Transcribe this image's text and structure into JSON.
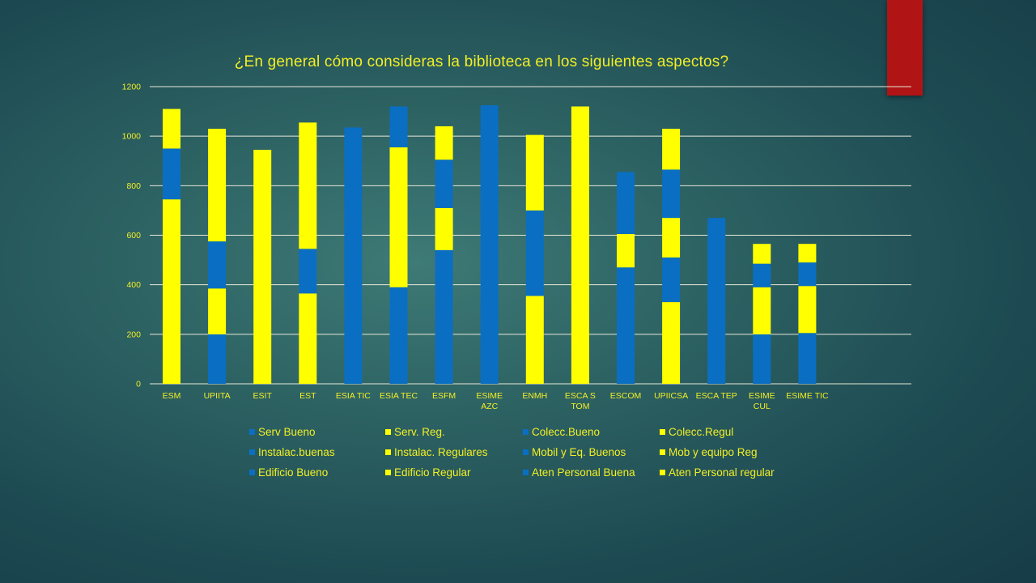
{
  "colors": {
    "blue": "#0a6fc2",
    "yellow": "#ffff00",
    "gridline": "#e8e8d8",
    "text": "#f2ef24",
    "accent": "#b11414"
  },
  "chart_data": {
    "type": "bar",
    "stacked": true,
    "title": "¿En general cómo consideras la biblioteca en los siguientes aspectos?",
    "xlabel": "",
    "ylabel": "",
    "ylim": [
      0,
      1200
    ],
    "yticks": [
      0,
      200,
      400,
      600,
      800,
      1000,
      1200
    ],
    "grid": true,
    "legend_position": "bottom",
    "categories": [
      "ESM",
      "UPIITA",
      "ESIT",
      "EST",
      "ESIA TIC",
      "ESIA TEC",
      "ESFM",
      "ESIME AZC",
      "ENMH",
      "ESCA S TOM",
      "ESCOM",
      "UPIICSA",
      "ESCA TEP",
      "ESIME CUL",
      "ESIME TIC"
    ],
    "category_lines": [
      [
        "ESM"
      ],
      [
        "UPIITA"
      ],
      [
        "ESIT"
      ],
      [
        "EST"
      ],
      [
        "ESIA TIC"
      ],
      [
        "ESIA TEC"
      ],
      [
        "ESFM"
      ],
      [
        "ESIME",
        "AZC"
      ],
      [
        "ENMH"
      ],
      [
        "ESCA S",
        "TOM"
      ],
      [
        "ESCOM"
      ],
      [
        "UPIICSA"
      ],
      [
        "ESCA TEP"
      ],
      [
        "ESIME",
        "CUL"
      ],
      [
        "ESIME TIC"
      ]
    ],
    "series": [
      {
        "name": "Serv Bueno",
        "color": "blue",
        "values": [
          0,
          0,
          0,
          0,
          0,
          0,
          0,
          0,
          0,
          0,
          0,
          0,
          0,
          0,
          0
        ]
      },
      {
        "name": "Serv. Reg.",
        "color": "yellow",
        "values": [
          745,
          0,
          0,
          0,
          0,
          0,
          0,
          0,
          0,
          0,
          0,
          0,
          0,
          0,
          0
        ]
      },
      {
        "name": "Colecc.Bueno",
        "color": "blue",
        "values": [
          205,
          200,
          0,
          0,
          0,
          0,
          0,
          0,
          0,
          0,
          0,
          0,
          0,
          0,
          0
        ]
      },
      {
        "name": "Colecc.Regul",
        "color": "yellow",
        "values": [
          160,
          185,
          0,
          0,
          0,
          0,
          0,
          0,
          0,
          0,
          0,
          0,
          0,
          0,
          0
        ]
      },
      {
        "name": "Instalac.buenas",
        "color": "blue",
        "values": [
          0,
          190,
          0,
          0,
          0,
          0,
          0,
          0,
          0,
          0,
          0,
          0,
          0,
          0,
          0
        ]
      },
      {
        "name": "Instalac. Regulares",
        "color": "yellow",
        "values": [
          0,
          455,
          945,
          365,
          0,
          0,
          0,
          0,
          0,
          0,
          0,
          0,
          0,
          0,
          0
        ]
      },
      {
        "name": "Mobil y Eq. Buenos",
        "color": "blue",
        "values": [
          0,
          0,
          0,
          180,
          1035,
          390,
          0,
          0,
          0,
          0,
          0,
          0,
          0,
          0,
          0
        ]
      },
      {
        "name": "Mob y equipo Reg",
        "color": "yellow",
        "values": [
          0,
          0,
          0,
          510,
          0,
          565,
          0,
          0,
          0,
          0,
          0,
          0,
          0,
          0,
          0
        ]
      },
      {
        "name": "Edificio Bueno",
        "color": "blue",
        "values": [
          0,
          0,
          0,
          0,
          0,
          165,
          540,
          1125,
          0,
          0,
          0,
          0,
          0,
          0,
          0
        ]
      },
      {
        "name": "Edificio Regular",
        "color": "yellow",
        "values": [
          0,
          0,
          0,
          0,
          0,
          0,
          170,
          0,
          355,
          1120,
          0,
          0,
          0,
          0,
          0
        ]
      },
      {
        "name": "Aten Personal Buena",
        "color": "blue",
        "values": [
          0,
          0,
          0,
          0,
          0,
          0,
          195,
          0,
          345,
          0,
          470,
          0,
          0,
          0,
          0
        ]
      },
      {
        "name": "Aten Personal regular",
        "color": "yellow",
        "values": [
          0,
          0,
          0,
          0,
          0,
          0,
          135,
          0,
          305,
          0,
          135,
          330,
          0,
          0,
          0
        ]
      },
      {
        "name": "",
        "color": "blue",
        "values": [
          0,
          0,
          0,
          0,
          0,
          0,
          0,
          0,
          0,
          0,
          250,
          180,
          670,
          200,
          205
        ]
      },
      {
        "name": "",
        "color": "yellow",
        "values": [
          0,
          0,
          0,
          0,
          0,
          0,
          0,
          0,
          0,
          0,
          0,
          160,
          0,
          190,
          190
        ]
      },
      {
        "name": "",
        "color": "blue",
        "values": [
          0,
          0,
          0,
          0,
          0,
          0,
          0,
          0,
          0,
          0,
          0,
          195,
          0,
          95,
          95
        ]
      },
      {
        "name": "",
        "color": "yellow",
        "values": [
          0,
          0,
          0,
          0,
          0,
          0,
          0,
          0,
          0,
          0,
          0,
          165,
          0,
          80,
          75
        ]
      }
    ]
  },
  "legend": {
    "items": [
      {
        "label": "Serv Bueno",
        "color": "blue"
      },
      {
        "label": "Serv. Reg.",
        "color": "yellow"
      },
      {
        "label": "Colecc.Bueno",
        "color": "blue"
      },
      {
        "label": "Colecc.Regul",
        "color": "yellow"
      },
      {
        "label": "Instalac.buenas",
        "color": "blue"
      },
      {
        "label": "Instalac. Regulares",
        "color": "yellow"
      },
      {
        "label": "Mobil y Eq. Buenos",
        "color": "blue"
      },
      {
        "label": "Mob y equipo Reg",
        "color": "yellow"
      },
      {
        "label": "Edificio Bueno",
        "color": "blue"
      },
      {
        "label": "Edificio Regular",
        "color": "yellow"
      },
      {
        "label": "Aten Personal Buena",
        "color": "blue"
      },
      {
        "label": "Aten Personal regular",
        "color": "yellow"
      }
    ]
  }
}
